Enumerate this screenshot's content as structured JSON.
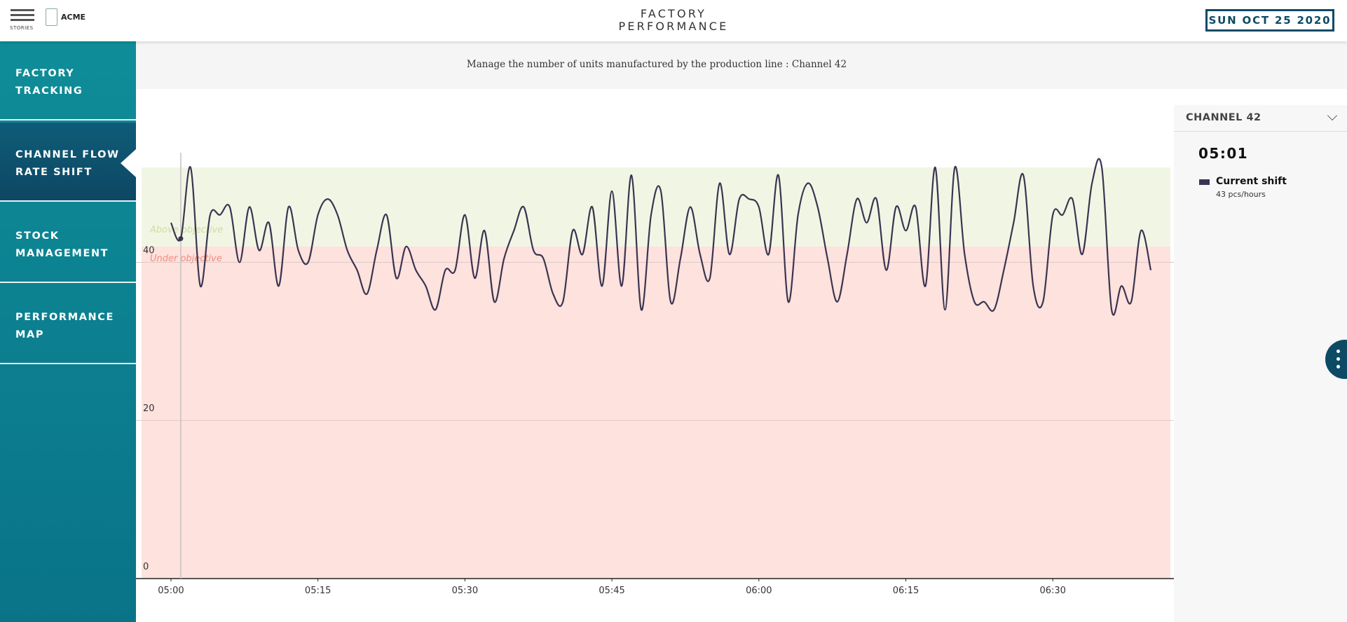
{
  "header": {
    "menu_label": "STORIES",
    "logo": "ACME",
    "title": "FACTORY PERFORMANCE",
    "date": "SUN OCT 25 2020"
  },
  "nav": {
    "items": [
      "FACTORY TRACKING",
      "CHANNEL FLOW RATE SHIFT",
      "STOCK MANAGEMENT",
      "PERFORMANCE MAP"
    ]
  },
  "subtitle": "Manage the number of units manufactured by the production line : Channel 42",
  "panel": {
    "channel": "CHANNEL 42"
  },
  "chart_data": {
    "type": "line",
    "x": [
      "05:00",
      "05:01",
      "05:02",
      "05:03",
      "05:04",
      "05:05",
      "05:06",
      "05:07",
      "05:08",
      "05:09",
      "05:10",
      "05:11",
      "05:12",
      "05:13",
      "05:14",
      "05:15",
      "05:16",
      "05:17",
      "05:18",
      "05:19",
      "05:20",
      "05:21",
      "05:22",
      "05:23",
      "05:24",
      "05:25",
      "05:26",
      "05:27",
      "05:28",
      "05:29",
      "05:30",
      "05:31",
      "05:32",
      "05:33",
      "05:34",
      "05:35",
      "05:36",
      "05:37",
      "05:38",
      "05:39",
      "05:40",
      "05:41",
      "05:42",
      "05:43",
      "05:44",
      "05:45",
      "05:46",
      "05:47",
      "05:48",
      "05:49",
      "05:50",
      "05:51",
      "05:52",
      "05:53",
      "05:54",
      "05:55",
      "05:56",
      "05:57",
      "05:58",
      "05:59",
      "06:00",
      "06:01",
      "06:02",
      "06:03",
      "06:04",
      "06:05",
      "06:06",
      "06:07",
      "06:08",
      "06:09",
      "06:10",
      "06:11",
      "06:12",
      "06:13",
      "06:14",
      "06:15",
      "06:16",
      "06:17",
      "06:18",
      "06:19",
      "06:20",
      "06:21",
      "06:22",
      "06:23",
      "06:24",
      "06:25",
      "06:26",
      "06:27",
      "06:28",
      "06:29",
      "06:30",
      "06:31",
      "06:32",
      "06:33",
      "06:34",
      "06:35",
      "06:36",
      "06:37",
      "06:38",
      "06:39",
      "06:40"
    ],
    "series": [
      {
        "name": "Current shift",
        "color": "#3b3451",
        "values": [
          45,
          43,
          52,
          37,
          46,
          46,
          47,
          40,
          47,
          41.5,
          45,
          37,
          47,
          41.5,
          40,
          46,
          48,
          46,
          41.5,
          39,
          36,
          41.5,
          46,
          38,
          42,
          39,
          37,
          34,
          39,
          39,
          46,
          38,
          44,
          35,
          40.5,
          44,
          47,
          41.5,
          40.5,
          36,
          35,
          44,
          41,
          47,
          37,
          49,
          37,
          51,
          34,
          46,
          49,
          35,
          40.5,
          47,
          41,
          38,
          50,
          41,
          48,
          48,
          47,
          41,
          51,
          35,
          46,
          50,
          47,
          40.5,
          35,
          41,
          48,
          45,
          48,
          39,
          47,
          44,
          47,
          37,
          52,
          34,
          52,
          41,
          35,
          35,
          34,
          39,
          45,
          51,
          37,
          35,
          46,
          46,
          48,
          41,
          50,
          52,
          34,
          37,
          35,
          44,
          39
        ]
      }
    ],
    "objective": {
      "value": 42,
      "above_label": "Above objective",
      "under_label": "Under objective",
      "above_color": "#f1f6e4",
      "under_color": "#fde2dd"
    },
    "tooltip": {
      "time": "05:01",
      "value_label": "43 pcs/hours"
    },
    "xlim": [
      "04:57",
      "06:42"
    ],
    "xticks": [
      "05:00",
      "05:15",
      "05:30",
      "05:45",
      "06:00",
      "06:15",
      "06:30"
    ],
    "ylim": [
      0,
      52
    ],
    "yticks": [
      0,
      20,
      40
    ],
    "grid": true
  }
}
